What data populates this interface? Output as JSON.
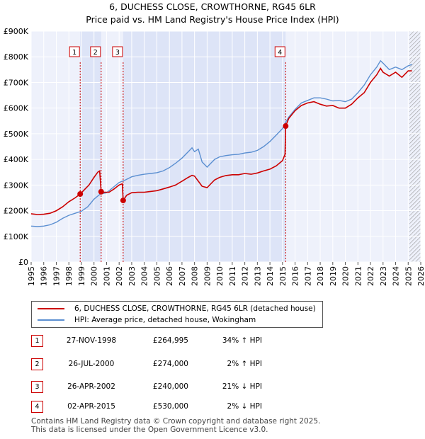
{
  "header": {
    "title": "6, DUCHESS CLOSE, CROWTHORNE, RG45 6LR",
    "subtitle": "Price paid vs. HM Land Registry's House Price Index (HPI)"
  },
  "chart_data": {
    "type": "line",
    "xlim": [
      1995,
      2026
    ],
    "ylim": [
      0,
      900000
    ],
    "x_ticks": [
      "1995",
      "1996",
      "1997",
      "1998",
      "1999",
      "2000",
      "2001",
      "2002",
      "2003",
      "2004",
      "2005",
      "2006",
      "2007",
      "2008",
      "2009",
      "2010",
      "2011",
      "2012",
      "2013",
      "2014",
      "2015",
      "2016",
      "2017",
      "2018",
      "2019",
      "2020",
      "2021",
      "2022",
      "2023",
      "2024",
      "2025",
      "2026"
    ],
    "y_ticks": [
      {
        "value": 0,
        "label": "£0"
      },
      {
        "value": 100000,
        "label": "£100K"
      },
      {
        "value": 200000,
        "label": "£200K"
      },
      {
        "value": 300000,
        "label": "£300K"
      },
      {
        "value": 400000,
        "label": "£400K"
      },
      {
        "value": 500000,
        "label": "£500K"
      },
      {
        "value": 600000,
        "label": "£600K"
      },
      {
        "value": 700000,
        "label": "£700K"
      },
      {
        "value": 800000,
        "label": "£800K"
      },
      {
        "value": 900000,
        "label": "£900K"
      }
    ],
    "colors": {
      "property": "#cc0000",
      "hpi": "#5b8fd1",
      "shade": "#e8ecfa",
      "grid": "#ffffff",
      "plot_bg": "#eef1fb",
      "hatch": "#999999"
    },
    "shaded_ranges": [
      [
        1998.9,
        2000.57
      ],
      [
        2002.32,
        2015.25
      ]
    ],
    "hatch_from": 2025.1,
    "series": [
      {
        "name": "6, DUCHESS CLOSE, CROWTHORNE, RG45 6LR (detached house)",
        "key": "property",
        "x": [
          1995.0,
          1995.5,
          1996.0,
          1996.5,
          1997.0,
          1997.5,
          1998.0,
          1998.5,
          1998.9,
          1999.2,
          1999.6,
          2000.0,
          2000.3,
          2000.45,
          2000.57,
          2000.8,
          2001.2,
          2001.6,
          2002.0,
          2002.25,
          2002.32,
          2002.6,
          2003.0,
          2003.5,
          2004.0,
          2004.5,
          2005.0,
          2005.5,
          2006.0,
          2006.5,
          2007.0,
          2007.5,
          2007.8,
          2008.0,
          2008.3,
          2008.6,
          2009.0,
          2009.3,
          2009.6,
          2010.0,
          2010.5,
          2011.0,
          2011.5,
          2012.0,
          2012.5,
          2013.0,
          2013.5,
          2014.0,
          2014.5,
          2015.0,
          2015.2,
          2015.25,
          2015.5,
          2016.0,
          2016.5,
          2017.0,
          2017.5,
          2018.0,
          2018.5,
          2019.0,
          2019.5,
          2020.0,
          2020.5,
          2021.0,
          2021.5,
          2022.0,
          2022.5,
          2022.8,
          2023.0,
          2023.5,
          2024.0,
          2024.5,
          2025.0,
          2025.3
        ],
        "values": [
          188000,
          185000,
          186000,
          190000,
          200000,
          215000,
          235000,
          250000,
          264995,
          280000,
          300000,
          330000,
          350000,
          355000,
          274000,
          272000,
          272000,
          285000,
          300000,
          305000,
          240000,
          260000,
          270000,
          272000,
          272000,
          275000,
          278000,
          285000,
          292000,
          300000,
          315000,
          330000,
          338000,
          335000,
          315000,
          295000,
          290000,
          305000,
          320000,
          330000,
          337000,
          340000,
          340000,
          345000,
          342000,
          347000,
          355000,
          362000,
          375000,
          395000,
          420000,
          530000,
          560000,
          590000,
          610000,
          620000,
          625000,
          615000,
          608000,
          610000,
          600000,
          600000,
          615000,
          640000,
          660000,
          700000,
          730000,
          755000,
          740000,
          725000,
          740000,
          720000,
          745000,
          745000
        ]
      },
      {
        "name": "HPI: Average price, detached house, Wokingham",
        "key": "hpi",
        "x": [
          1995.0,
          1995.5,
          1996.0,
          1996.5,
          1997.0,
          1997.5,
          1998.0,
          1998.5,
          1999.0,
          1999.5,
          2000.0,
          2000.5,
          2001.0,
          2001.5,
          2002.0,
          2002.5,
          2003.0,
          2003.5,
          2004.0,
          2004.5,
          2005.0,
          2005.5,
          2006.0,
          2006.5,
          2007.0,
          2007.5,
          2007.8,
          2008.0,
          2008.3,
          2008.6,
          2009.0,
          2009.3,
          2009.6,
          2010.0,
          2010.5,
          2011.0,
          2011.5,
          2012.0,
          2012.5,
          2013.0,
          2013.5,
          2014.0,
          2014.5,
          2015.0,
          2015.25,
          2015.5,
          2016.0,
          2016.5,
          2017.0,
          2017.5,
          2018.0,
          2018.5,
          2019.0,
          2019.5,
          2020.0,
          2020.5,
          2021.0,
          2021.5,
          2022.0,
          2022.5,
          2022.8,
          2023.0,
          2023.5,
          2024.0,
          2024.5,
          2025.0,
          2025.3
        ],
        "values": [
          140000,
          138000,
          140000,
          145000,
          155000,
          170000,
          182000,
          190000,
          198000,
          215000,
          245000,
          265000,
          270000,
          290000,
          310000,
          320000,
          332000,
          338000,
          342000,
          345000,
          348000,
          355000,
          368000,
          385000,
          405000,
          430000,
          445000,
          430000,
          440000,
          390000,
          370000,
          385000,
          400000,
          410000,
          415000,
          418000,
          420000,
          425000,
          428000,
          435000,
          450000,
          470000,
          495000,
          520000,
          545000,
          565000,
          595000,
          620000,
          630000,
          640000,
          640000,
          635000,
          628000,
          630000,
          625000,
          635000,
          660000,
          690000,
          730000,
          760000,
          785000,
          775000,
          750000,
          760000,
          750000,
          765000,
          770000
        ]
      }
    ],
    "sales": [
      {
        "label": "1",
        "x": 1998.9,
        "value": 264995
      },
      {
        "label": "2",
        "x": 2000.57,
        "value": 274000
      },
      {
        "label": "3",
        "x": 2002.32,
        "value": 240000
      },
      {
        "label": "4",
        "x": 2015.25,
        "value": 530000
      }
    ]
  },
  "legend": {
    "property": "6, DUCHESS CLOSE, CROWTHORNE, RG45 6LR (detached house)",
    "hpi": "HPI: Average price, detached house, Wokingham"
  },
  "transactions": [
    {
      "num": "1",
      "date": "27-NOV-1998",
      "price": "£264,995",
      "hpi": "34% ↑ HPI"
    },
    {
      "num": "2",
      "date": "26-JUL-2000",
      "price": "£274,000",
      "hpi": "2% ↑ HPI"
    },
    {
      "num": "3",
      "date": "26-APR-2002",
      "price": "£240,000",
      "hpi": "21% ↓ HPI"
    },
    {
      "num": "4",
      "date": "02-APR-2015",
      "price": "£530,000",
      "hpi": "2% ↓ HPI"
    }
  ],
  "footer": {
    "line1": "Contains HM Land Registry data © Crown copyright and database right 2025.",
    "line2": "This data is licensed under the Open Government Licence v3.0."
  }
}
